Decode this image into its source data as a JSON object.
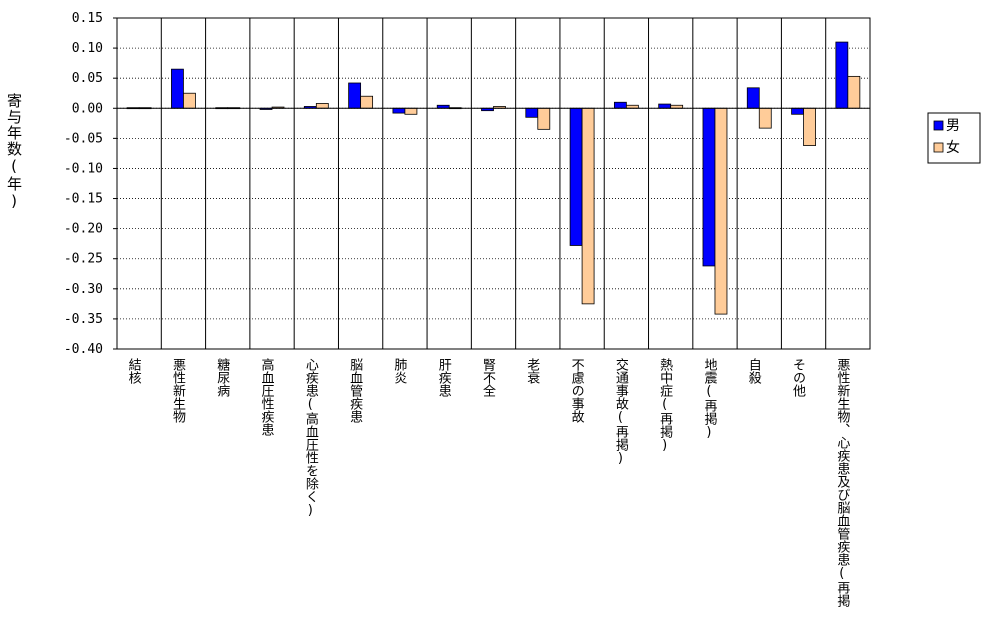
{
  "chart_data": {
    "type": "bar",
    "title": "",
    "xlabel": "",
    "ylabel": "寄与年数(年)",
    "ylim": [
      -0.4,
      0.15
    ],
    "ytick_step": 0.05,
    "ytick_labels": [
      "0.15",
      "0.10",
      "0.05",
      "0.00",
      "-0.05",
      "-0.10",
      "-0.15",
      "-0.20",
      "-0.25",
      "-0.30",
      "-0.35",
      "-0.40"
    ],
    "grid": "horizontal dotted",
    "legend_position": "right",
    "categories": [
      "結核",
      "悪性新生物",
      "糖尿病",
      "高血圧性疾患",
      "心疾患(高血圧性を除く)",
      "脳血管疾患",
      "肺炎",
      "肝疾患",
      "腎不全",
      "老衰",
      "不慮の事故",
      "交通事故(再掲)",
      "熱中症(再掲)",
      "地震(再掲)",
      "自殺",
      "その他",
      "悪性新生物、心疾患及び脳血管疾患(再掲"
    ],
    "series": [
      {
        "name": "男",
        "color": "#0000ff",
        "values": [
          0.001,
          0.065,
          0.001,
          -0.002,
          0.003,
          0.042,
          -0.008,
          0.005,
          -0.004,
          -0.015,
          -0.228,
          0.01,
          0.007,
          -0.262,
          0.034,
          -0.01,
          0.11
        ]
      },
      {
        "name": "女",
        "color": "#ffcc99",
        "values": [
          0.001,
          0.025,
          0.001,
          0.002,
          0.008,
          0.02,
          -0.01,
          0.001,
          0.003,
          -0.035,
          -0.325,
          0.005,
          0.005,
          -0.342,
          -0.033,
          -0.062,
          0.053
        ]
      }
    ]
  }
}
